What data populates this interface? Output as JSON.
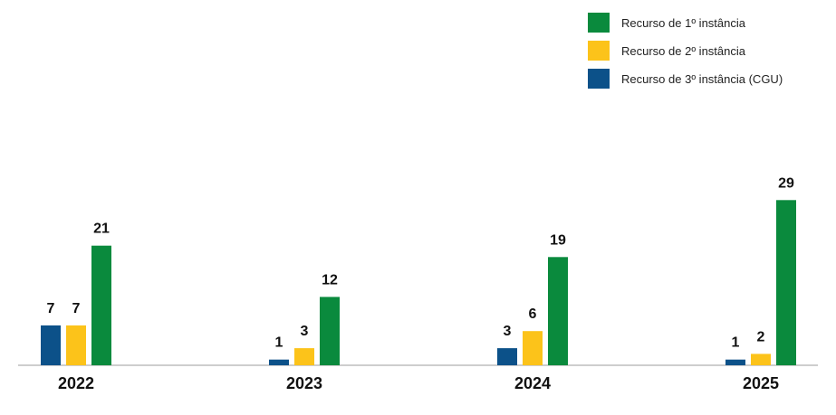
{
  "chart_data": {
    "type": "bar",
    "categories": [
      "2022",
      "2023",
      "2024",
      "2025"
    ],
    "series": [
      {
        "name": "Recurso de 3º instância (CGU)",
        "color": "#0c5189",
        "values": [
          7,
          1,
          3,
          1
        ]
      },
      {
        "name": "Recurso de 2º instância",
        "color": "#fcc31a",
        "values": [
          7,
          3,
          6,
          2
        ]
      },
      {
        "name": "Recurso de 1º instância",
        "color": "#0a8a3d",
        "values": [
          21,
          12,
          19,
          29
        ]
      }
    ],
    "legend_order": [
      "Recurso de 1º instância",
      "Recurso de 2º instância",
      "Recurso de 3º instância (CGU)"
    ],
    "legend_position": "top-right",
    "ylim": [
      0,
      30
    ],
    "grid": false,
    "title": "",
    "xlabel": "",
    "ylabel": ""
  }
}
